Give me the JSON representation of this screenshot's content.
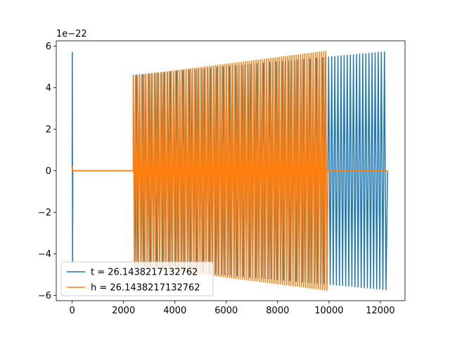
{
  "chart_data": {
    "type": "line",
    "title": "",
    "xlabel": "",
    "ylabel": "",
    "y_offset_label": "1e−22",
    "xlim": [
      -620,
      12960
    ],
    "ylim": [
      -6.25,
      6.25
    ],
    "x_ticks": [
      0,
      2000,
      4000,
      6000,
      8000,
      10000,
      12000
    ],
    "x_tick_labels": [
      "0",
      "2000",
      "4000",
      "6000",
      "8000",
      "10000",
      "12000"
    ],
    "y_ticks": [
      -6,
      -4,
      -2,
      0,
      2,
      4,
      6
    ],
    "y_tick_labels": [
      "−6",
      "−4",
      "−2",
      "0",
      "2",
      "4",
      "6"
    ],
    "grid": false,
    "legend_position": "lower-left",
    "series": [
      {
        "name": "t = 26.1438217132762",
        "color": "#1f77b4",
        "shape": "chirp oscillation, amplitude growing from about 4.6 to 5.7, zero-valued gap from x about 0 to 2380",
        "x_start": 0,
        "x_end": 12280,
        "initial_spike": 5.7,
        "gap_start": 30,
        "gap_end": 2380,
        "amplitude_start": 4.6,
        "amplitude_end": 5.72,
        "cycles": 82
      },
      {
        "name": "h = 26.1438217132762",
        "color": "#ff7f0e",
        "shape": "chirp oscillation, amplitude growing from about 4.55 to 5.75, then zero from x about 9960 to 12280",
        "x_start": 0,
        "x_end": 12280,
        "initial_spike": 0.2,
        "gap_start": 30,
        "gap_end": 2380,
        "oscillation_end": 9960,
        "amplitude_start": 4.55,
        "amplitude_end": 5.75,
        "cycles": 92
      }
    ]
  }
}
